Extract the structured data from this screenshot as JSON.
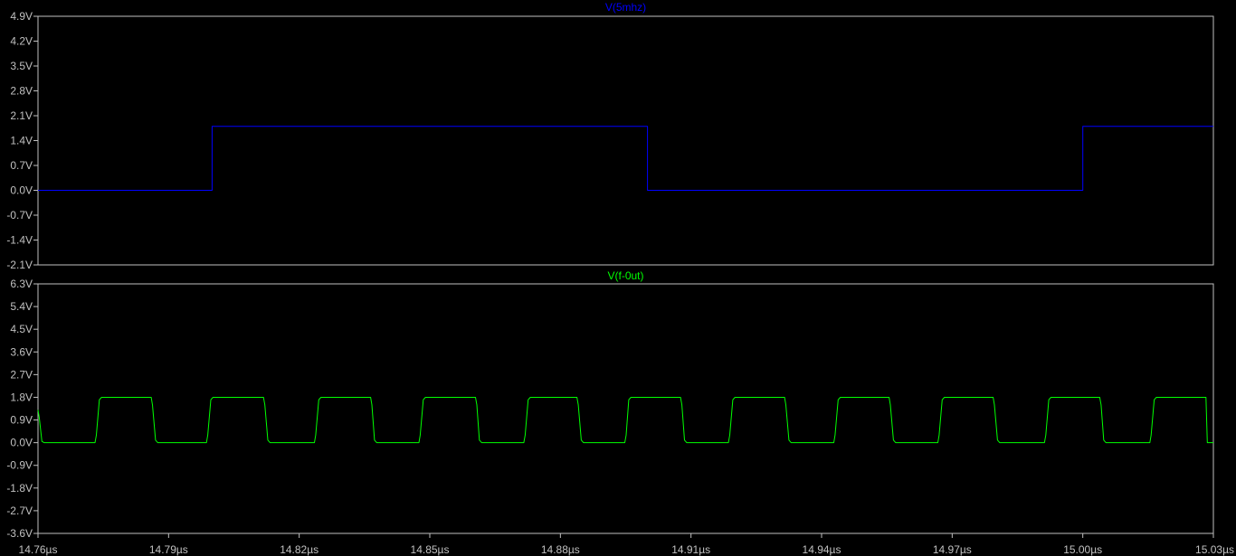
{
  "chart_data": [
    {
      "type": "line",
      "title": "V(5mhz)",
      "title_color": "#0000ff",
      "series": [
        {
          "name": "V(5mhz)",
          "color": "#0000ff",
          "x": [
            14.76,
            14.8,
            14.8,
            14.9,
            14.9,
            15.0,
            15.0,
            15.03
          ],
          "y": [
            0.0,
            0.0,
            1.8,
            1.8,
            0.0,
            0.0,
            1.8,
            1.8
          ]
        }
      ],
      "ylim": [
        -2.1,
        4.9
      ],
      "yticks": [
        4.9,
        4.2,
        3.5,
        2.8,
        2.1,
        1.4,
        0.7,
        0.0,
        -0.7,
        -1.4,
        -2.1
      ],
      "ytick_labels": [
        "4.9V",
        "4.2V",
        "3.5V",
        "2.8V",
        "2.1V",
        "1.4V",
        "0.7V",
        "0.0V",
        "-0.7V",
        "-1.4V",
        "-2.1V"
      ],
      "xlim": [
        14.76,
        15.03
      ],
      "grid": false
    },
    {
      "type": "line",
      "title": "V(f-0ut)",
      "title_color": "#00ff00",
      "series": [
        {
          "name": "V(f-0ut)",
          "color": "#00ff00",
          "x": [
            14.76,
            14.7603,
            14.7609,
            14.7614,
            14.7731,
            14.7734,
            14.7741,
            14.7746,
            14.786,
            14.7863,
            14.787,
            14.7875,
            14.7987,
            14.799,
            14.7997,
            14.8002,
            14.8118,
            14.8121,
            14.8128,
            14.8133,
            14.8235,
            14.8238,
            14.8245,
            14.825,
            14.8364,
            14.8367,
            14.8373,
            14.8378,
            14.8475,
            14.8478,
            14.8485,
            14.849,
            14.8605,
            14.8608,
            14.8614,
            14.8619,
            14.8716,
            14.8719,
            14.8726,
            14.8731,
            14.8838,
            14.8841,
            14.8848,
            14.8853,
            14.8948,
            14.8951,
            14.8957,
            14.8962,
            14.9076,
            14.9079,
            14.9085,
            14.909,
            14.9186,
            14.9189,
            14.9196,
            14.9201,
            14.9315,
            14.9318,
            14.9325,
            14.933,
            14.9428,
            14.9431,
            14.9438,
            14.9443,
            14.9555,
            14.9558,
            14.9565,
            14.957,
            14.9667,
            14.967,
            14.9677,
            14.9682,
            14.9794,
            14.9797,
            14.9804,
            14.9809,
            14.9912,
            14.9915,
            14.9922,
            14.9927,
            15.0039,
            15.0042,
            15.0048,
            15.0053,
            15.0154,
            15.0157,
            15.0164,
            15.0169,
            15.0283,
            15.0286,
            15.03
          ],
          "y": [
            1.3,
            1.0,
            0.05,
            0.0,
            0.0,
            0.3,
            1.7,
            1.8,
            1.8,
            1.5,
            0.1,
            0.0,
            0.0,
            0.3,
            1.7,
            1.8,
            1.8,
            1.5,
            0.1,
            0.0,
            0.0,
            0.3,
            1.7,
            1.8,
            1.8,
            1.5,
            0.1,
            0.0,
            0.0,
            0.3,
            1.7,
            1.8,
            1.8,
            1.5,
            0.1,
            0.0,
            0.0,
            0.3,
            1.7,
            1.8,
            1.8,
            1.5,
            0.1,
            0.0,
            0.0,
            0.3,
            1.7,
            1.8,
            1.8,
            1.5,
            0.1,
            0.0,
            0.0,
            0.3,
            1.7,
            1.8,
            1.8,
            1.5,
            0.1,
            0.0,
            0.0,
            0.3,
            1.7,
            1.8,
            1.8,
            1.5,
            0.1,
            0.0,
            0.0,
            0.3,
            1.7,
            1.8,
            1.8,
            1.5,
            0.1,
            0.0,
            0.0,
            0.3,
            1.7,
            1.8,
            1.8,
            1.5,
            0.1,
            0.0,
            0.0,
            0.3,
            1.7,
            1.8,
            1.8,
            0.0,
            0.0
          ]
        }
      ],
      "ylim": [
        -3.6,
        6.3
      ],
      "yticks": [
        6.3,
        5.4,
        4.5,
        3.6,
        2.7,
        1.8,
        0.9,
        0.0,
        -0.9,
        -1.8,
        -2.7,
        -3.6
      ],
      "ytick_labels": [
        "6.3V",
        "5.4V",
        "4.5V",
        "3.6V",
        "2.7V",
        "1.8V",
        "0.9V",
        "0.0V",
        "-0.9V",
        "-1.8V",
        "-2.7V",
        "-3.6V"
      ],
      "xlim": [
        14.76,
        15.03
      ],
      "xticks": [
        14.76,
        14.79,
        14.82,
        14.85,
        14.88,
        14.91,
        14.94,
        14.97,
        15.0,
        15.03
      ],
      "xtick_labels": [
        "14.76µs",
        "14.79µs",
        "14.82µs",
        "14.85µs",
        "14.88µs",
        "14.91µs",
        "14.94µs",
        "14.97µs",
        "15.00µs",
        "15.03µs"
      ],
      "grid": false
    }
  ]
}
